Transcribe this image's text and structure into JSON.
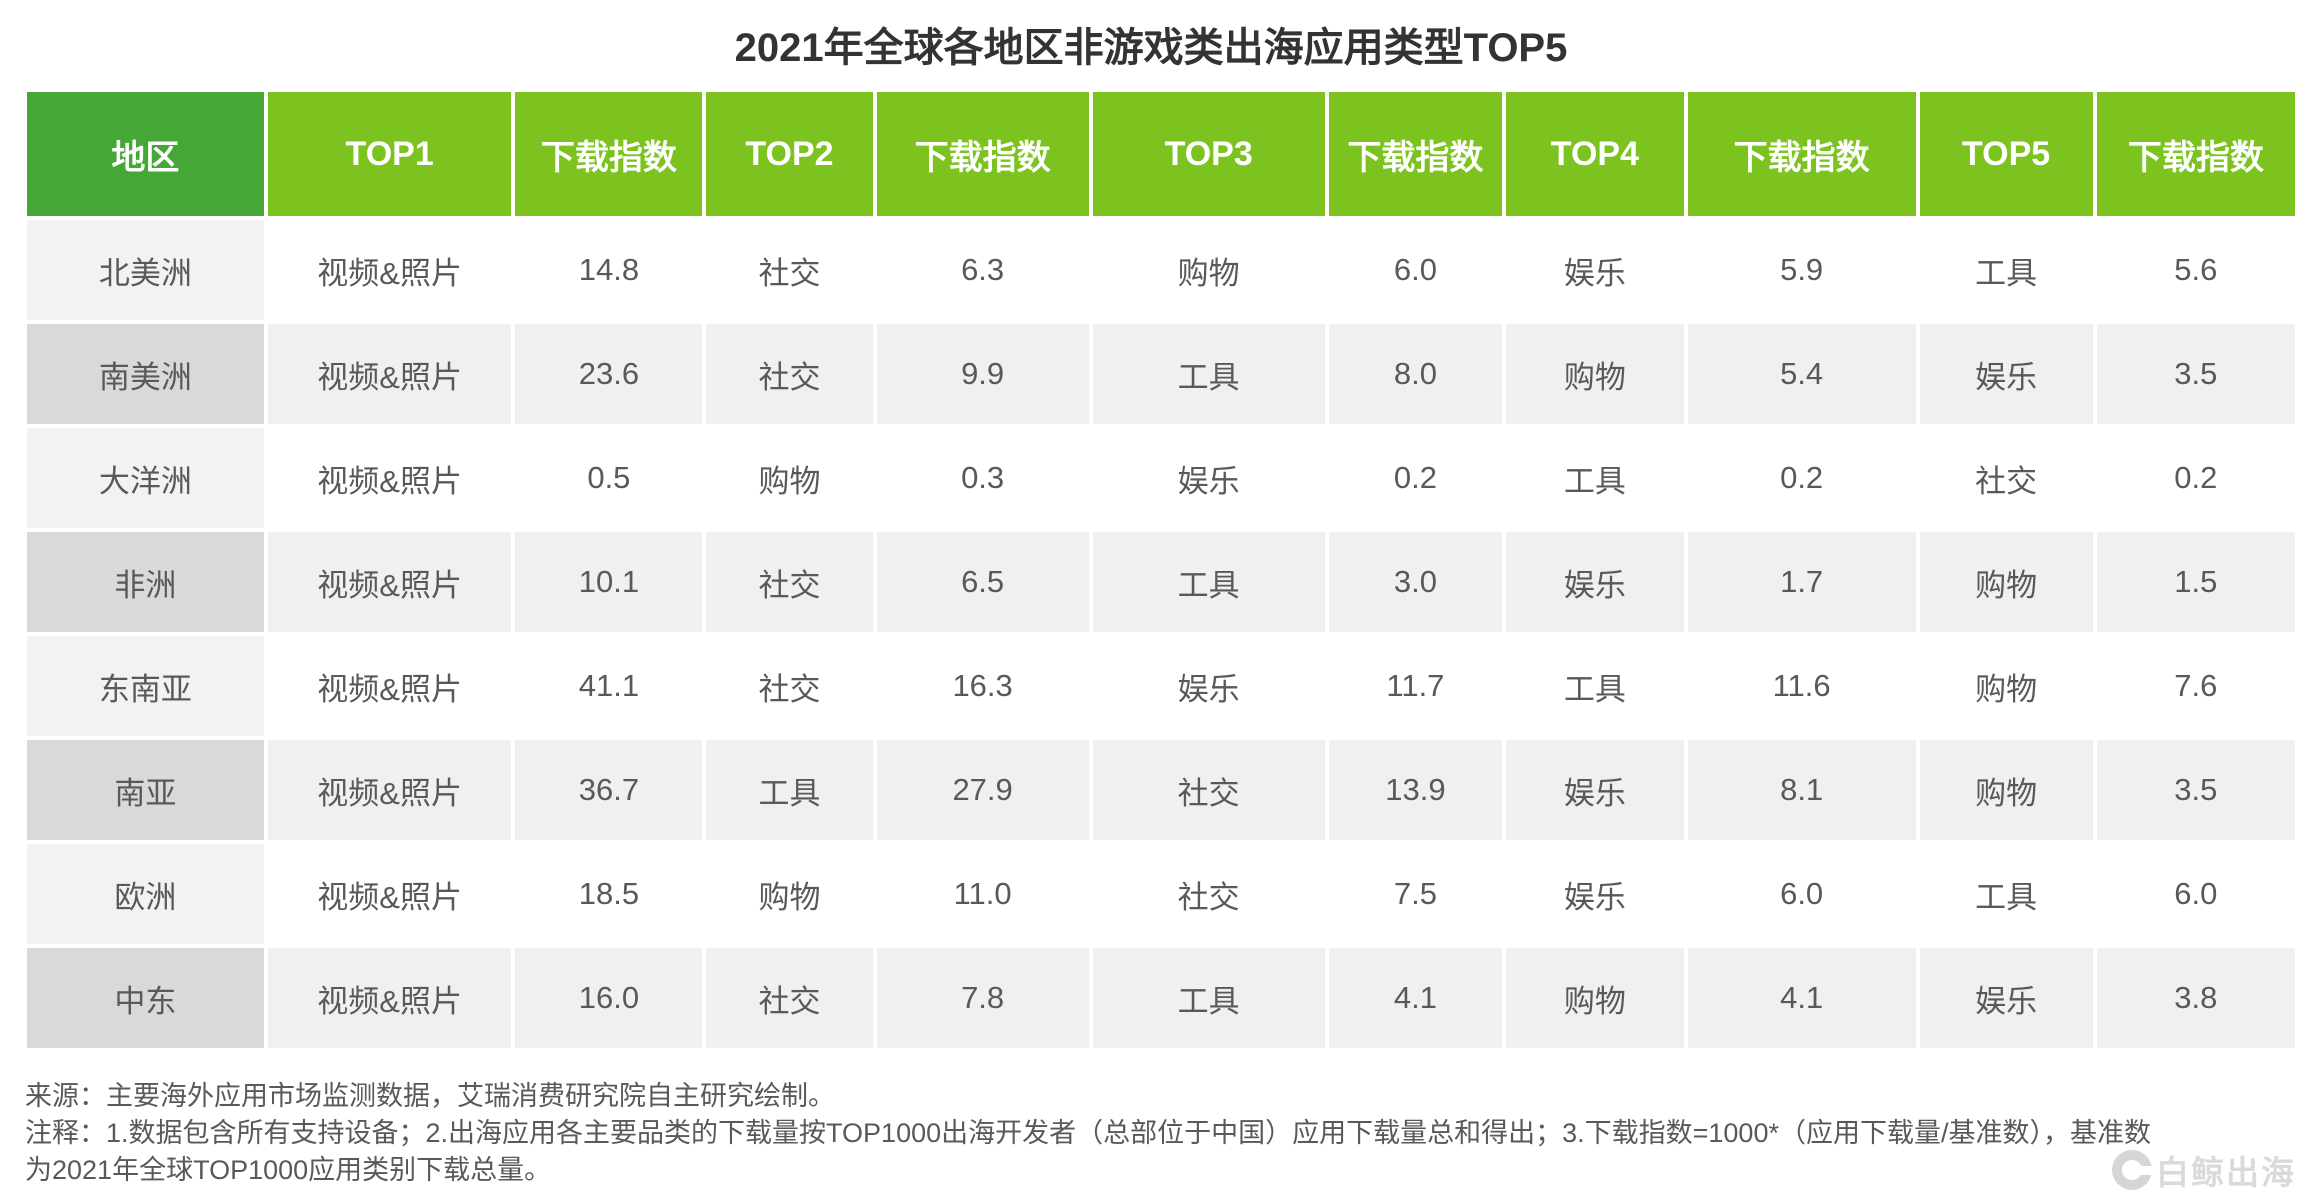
{
  "title": "2021年全球各地区非游戏类出海应用类型TOP5",
  "table": {
    "headers": [
      "地区",
      "TOP1",
      "下载指数",
      "TOP2",
      "下载指数",
      "TOP3",
      "下载指数",
      "TOP4",
      "下载指数",
      "TOP5",
      "下载指数"
    ],
    "rows": [
      {
        "region": "北美洲",
        "cells": [
          "视频&照片",
          "14.8",
          "社交",
          "6.3",
          "购物",
          "6.0",
          "娱乐",
          "5.9",
          "工具",
          "5.6"
        ]
      },
      {
        "region": "南美洲",
        "cells": [
          "视频&照片",
          "23.6",
          "社交",
          "9.9",
          "工具",
          "8.0",
          "购物",
          "5.4",
          "娱乐",
          "3.5"
        ]
      },
      {
        "region": "大洋洲",
        "cells": [
          "视频&照片",
          "0.5",
          "购物",
          "0.3",
          "娱乐",
          "0.2",
          "工具",
          "0.2",
          "社交",
          "0.2"
        ]
      },
      {
        "region": "非洲",
        "cells": [
          "视频&照片",
          "10.1",
          "社交",
          "6.5",
          "工具",
          "3.0",
          "娱乐",
          "1.7",
          "购物",
          "1.5"
        ]
      },
      {
        "region": "东南亚",
        "cells": [
          "视频&照片",
          "41.1",
          "社交",
          "16.3",
          "娱乐",
          "11.7",
          "工具",
          "11.6",
          "购物",
          "7.6"
        ]
      },
      {
        "region": "南亚",
        "cells": [
          "视频&照片",
          "36.7",
          "工具",
          "27.9",
          "社交",
          "13.9",
          "娱乐",
          "8.1",
          "购物",
          "3.5"
        ]
      },
      {
        "region": "欧洲",
        "cells": [
          "视频&照片",
          "18.5",
          "购物",
          "11.0",
          "社交",
          "7.5",
          "娱乐",
          "6.0",
          "工具",
          "6.0"
        ]
      },
      {
        "region": "中东",
        "cells": [
          "视频&照片",
          "16.0",
          "社交",
          "7.8",
          "工具",
          "4.1",
          "购物",
          "4.1",
          "娱乐",
          "3.8"
        ]
      }
    ]
  },
  "chart_data": {
    "type": "table",
    "title": "2021年全球各地区非游戏类出海应用类型TOP5",
    "columns": [
      "地区",
      "TOP1",
      "下载指数",
      "TOP2",
      "下载指数",
      "TOP3",
      "下载指数",
      "TOP4",
      "下载指数",
      "TOP5",
      "下载指数"
    ],
    "rows": [
      [
        "北美洲",
        "视频&照片",
        14.8,
        "社交",
        6.3,
        "购物",
        6.0,
        "娱乐",
        5.9,
        "工具",
        5.6
      ],
      [
        "南美洲",
        "视频&照片",
        23.6,
        "社交",
        9.9,
        "工具",
        8.0,
        "购物",
        5.4,
        "娱乐",
        3.5
      ],
      [
        "大洋洲",
        "视频&照片",
        0.5,
        "购物",
        0.3,
        "娱乐",
        0.2,
        "工具",
        0.2,
        "社交",
        0.2
      ],
      [
        "非洲",
        "视频&照片",
        10.1,
        "社交",
        6.5,
        "工具",
        3.0,
        "娱乐",
        1.7,
        "购物",
        1.5
      ],
      [
        "东南亚",
        "视频&照片",
        41.1,
        "社交",
        16.3,
        "娱乐",
        11.7,
        "工具",
        11.6,
        "购物",
        7.6
      ],
      [
        "南亚",
        "视频&照片",
        36.7,
        "工具",
        27.9,
        "社交",
        13.9,
        "娱乐",
        8.1,
        "购物",
        3.5
      ],
      [
        "欧洲",
        "视频&照片",
        18.5,
        "购物",
        11.0,
        "社交",
        7.5,
        "娱乐",
        6.0,
        "工具",
        6.0
      ],
      [
        "中东",
        "视频&照片",
        16.0,
        "社交",
        7.8,
        "工具",
        4.1,
        "购物",
        4.1,
        "娱乐",
        3.8
      ]
    ]
  },
  "footer": {
    "source": "来源：主要海外应用市场监测数据，艾瑞消费研究院自主研究绘制。",
    "note_line1": "注释：1.数据包含所有支持设备；2.出海应用各主要品类的下载量按TOP1000出海开发者（总部位于中国）应用下载量总和得出；3.下载指数=1000*（应用下载量/基准数），基准数",
    "note_line2": "为2021年全球TOP1000应用类别下载总量。"
  },
  "watermark": {
    "text": "白鲸出海"
  },
  "colors": {
    "header_green": "#7cc31f",
    "region_header_green": "#45a735",
    "odd_row": "#ffffff",
    "odd_region": "#f2f2f2",
    "even_row": "#f0f0f0",
    "even_region": "#d9d9d9",
    "text_gray": "#595959",
    "title_dark": "#333333"
  }
}
